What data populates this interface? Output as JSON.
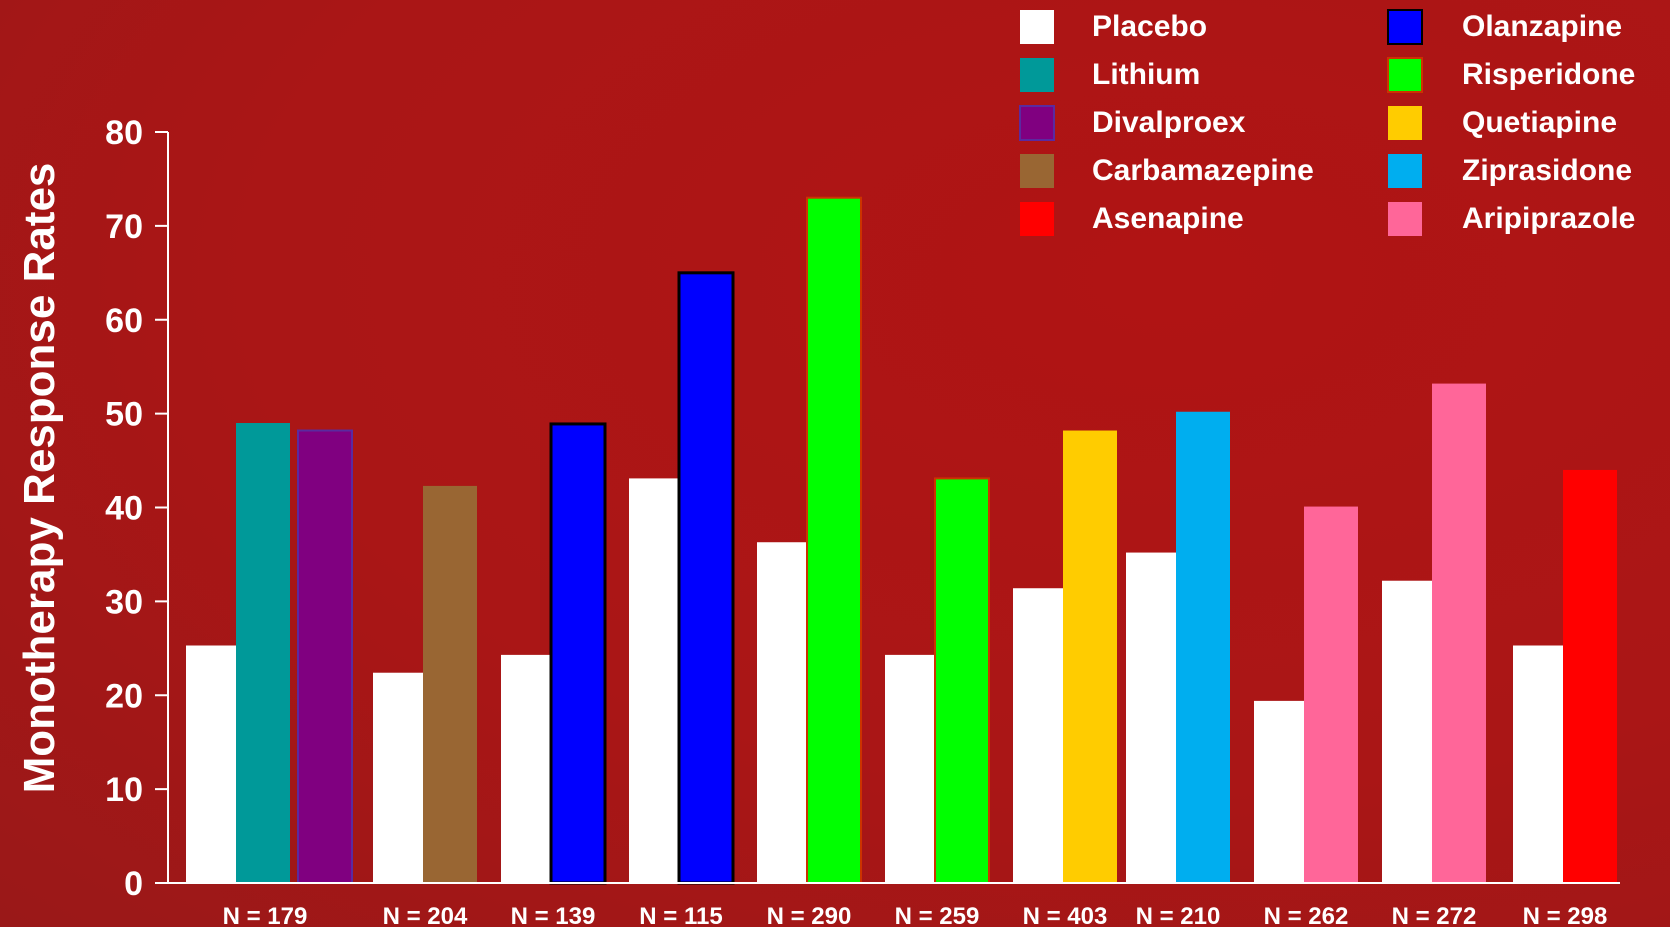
{
  "chart_data": {
    "type": "bar",
    "ylabel": "Monotherapy Response Rates",
    "ylim": [
      0,
      80
    ],
    "yticks": [
      0,
      10,
      20,
      30,
      40,
      50,
      60,
      70,
      80
    ],
    "colors": {
      "Placebo": "#ffffff",
      "Lithium": "#009999",
      "Divalproex": "#800080",
      "Carbamazepine": "#996633",
      "Asenapine": "#ff0000",
      "Olanzapine": "#0000ff",
      "Risperidone": "#00ff00",
      "Quetiapine": "#ffcc00",
      "Ziprasidone": "#00aeef",
      "Aripiprazole": "#ff6699"
    },
    "legend": [
      "Placebo",
      "Lithium",
      "Divalproex",
      "Carbamazepine",
      "Asenapine",
      "Olanzapine",
      "Risperidone",
      "Quetiapine",
      "Ziprasidone",
      "Aripiprazole"
    ],
    "groups": [
      {
        "label": "N = 179",
        "bars": [
          {
            "drug": "Placebo",
            "value": 25.3
          },
          {
            "drug": "Lithium",
            "value": 49
          },
          {
            "drug": "Divalproex",
            "value": 48.2
          }
        ]
      },
      {
        "label": "N = 204",
        "bars": [
          {
            "drug": "Placebo",
            "value": 22.4
          },
          {
            "drug": "Carbamazepine",
            "value": 42.3
          }
        ]
      },
      {
        "label": "N = 139",
        "bars": [
          {
            "drug": "Placebo",
            "value": 24.3
          },
          {
            "drug": "Olanzapine",
            "value": 48.9
          }
        ]
      },
      {
        "label": "N = 115",
        "bars": [
          {
            "drug": "Placebo",
            "value": 43.1
          },
          {
            "drug": "Olanzapine",
            "value": 65
          }
        ]
      },
      {
        "label": "N = 290",
        "bars": [
          {
            "drug": "Placebo",
            "value": 36.3
          },
          {
            "drug": "Risperidone",
            "value": 73
          }
        ]
      },
      {
        "label": "N = 259",
        "bars": [
          {
            "drug": "Placebo",
            "value": 24.3
          },
          {
            "drug": "Risperidone",
            "value": 43.1
          }
        ]
      },
      {
        "label": "N = 403",
        "bars": [
          {
            "drug": "Placebo",
            "value": 31.4
          },
          {
            "drug": "Quetiapine",
            "value": 48.2
          }
        ]
      },
      {
        "label": "N = 210",
        "bars": [
          {
            "drug": "Placebo",
            "value": 35.2
          },
          {
            "drug": "Ziprasidone",
            "value": 50.2
          }
        ]
      },
      {
        "label": "N = 262",
        "bars": [
          {
            "drug": "Placebo",
            "value": 19.4
          },
          {
            "drug": "Aripiprazole",
            "value": 40.1
          }
        ]
      },
      {
        "label": "N = 272",
        "bars": [
          {
            "drug": "Placebo",
            "value": 32.2
          },
          {
            "drug": "Aripiprazole",
            "value": 53.2
          }
        ]
      },
      {
        "label": "N = 298",
        "bars": [
          {
            "drug": "Placebo",
            "value": 25.3
          },
          {
            "drug": "Asenapine",
            "value": 44
          }
        ]
      }
    ]
  }
}
